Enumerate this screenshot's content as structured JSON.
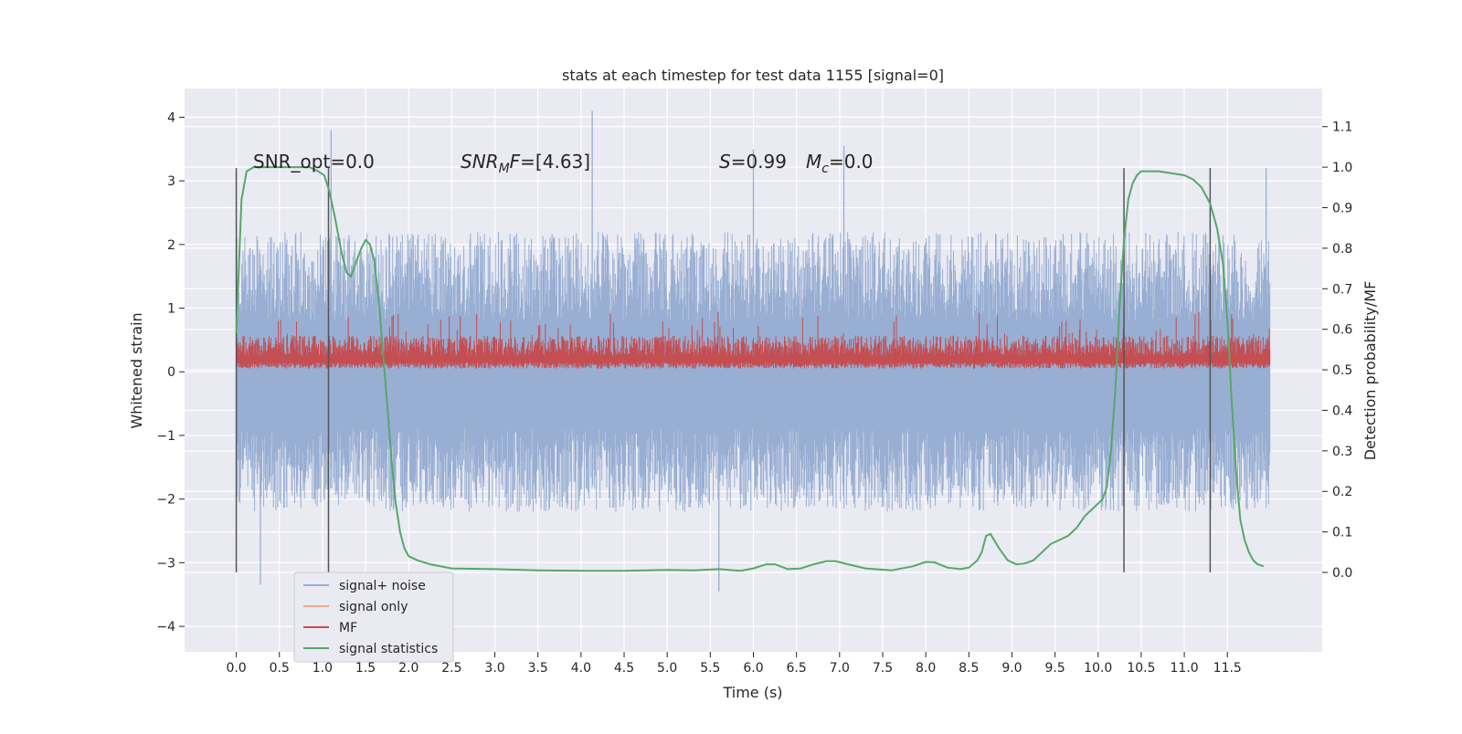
{
  "chart_data": {
    "type": "line",
    "title": "stats at each timestep for test data 1155 [signal=0]",
    "xlabel": "Time (s)",
    "ylabel": "Whitened strain",
    "y2label": "Detection probability/MF",
    "xlim": [
      -0.6,
      12.6
    ],
    "ylim": [
      -4.4,
      4.45
    ],
    "y2lim": [
      -0.196,
      1.194
    ],
    "x_ticks": [
      0.0,
      0.5,
      1.0,
      1.5,
      2.0,
      2.5,
      3.0,
      3.5,
      4.0,
      4.5,
      5.0,
      5.5,
      6.0,
      6.5,
      7.0,
      7.5,
      8.0,
      8.5,
      9.0,
      9.5,
      10.0,
      10.5,
      11.0,
      11.5
    ],
    "x_tick_labels": [
      "0.0",
      "0.5",
      "1.0",
      "1.5",
      "2.0",
      "2.5",
      "3.0",
      "3.5",
      "4.0",
      "4.5",
      "5.0",
      "5.5",
      "6.0",
      "6.5",
      "7.0",
      "7.5",
      "8.0",
      "8.5",
      "9.0",
      "9.5",
      "10.0",
      "10.5",
      "11.0",
      "11.5"
    ],
    "y_ticks": [
      4,
      3,
      2,
      1,
      0,
      -1,
      -2,
      -3,
      -4
    ],
    "y_tick_labels": [
      "4",
      "3",
      "2",
      "1",
      "0",
      "−1",
      "−2",
      "−3",
      "−4"
    ],
    "y2_ticks": [
      1.1,
      1.0,
      0.9,
      0.8,
      0.7,
      0.6,
      0.5,
      0.4,
      0.3,
      0.2,
      0.1,
      0.0
    ],
    "y2_tick_labels": [
      "1.1",
      "1.0",
      "0.9",
      "0.8",
      "0.7",
      "0.6",
      "0.5",
      "0.4",
      "0.3",
      "0.2",
      "0.1",
      "0.0"
    ],
    "grid": true,
    "legend_position": "bottom-left",
    "legend": [
      {
        "label": "signal+ noise",
        "color": "#98aed3"
      },
      {
        "label": "signal only",
        "color": "#e8a98e"
      },
      {
        "label": "MF",
        "color": "#c44e52"
      },
      {
        "label": "signal statistics",
        "color": "#55a868"
      }
    ],
    "annotations": {
      "snr_opt": "SNR_opt=0.0",
      "snr_mf_name": "SNR",
      "snr_mf_sub": "M",
      "snr_mf_name2": "F",
      "snr_mf_value": "=[4.63]",
      "s_name": "S",
      "s_value": "=0.99",
      "mc_name": "M",
      "mc_sub": "c",
      "mc_value": "=0.0"
    },
    "vertical_markers": [
      0.0,
      1.07,
      10.3,
      11.3
    ],
    "marker_range": [
      -3.15,
      3.2
    ],
    "noise_series": {
      "name": "signal+ noise",
      "x_range": [
        0.0,
        12.0
      ],
      "samples": 1700,
      "envelope_y": [
        -3.35,
        4.1
      ],
      "peaks": [
        {
          "x": 0.28,
          "y": -3.35
        },
        {
          "x": 1.1,
          "y": 3.8
        },
        {
          "x": 4.13,
          "y": 4.1
        },
        {
          "x": 5.6,
          "y": -3.45
        },
        {
          "x": 6.0,
          "y": 3.5
        },
        {
          "x": 7.05,
          "y": 3.55
        },
        {
          "x": 11.95,
          "y": 3.2
        }
      ]
    },
    "mf_series": {
      "name": "MF",
      "x_range": [
        0.0,
        12.0
      ],
      "samples": 1700,
      "baseline_y": 0.0,
      "typical_top_y": 0.55,
      "max_y": 0.95
    },
    "stat_series": {
      "name": "signal statistics",
      "axis": "right",
      "x": [
        0.0,
        0.06,
        0.12,
        0.2,
        0.35,
        0.5,
        0.7,
        0.85,
        0.95,
        1.02,
        1.08,
        1.15,
        1.22,
        1.28,
        1.33,
        1.38,
        1.45,
        1.5,
        1.55,
        1.6,
        1.65,
        1.7,
        1.75,
        1.8,
        1.85,
        1.9,
        1.95,
        2.0,
        2.1,
        2.25,
        2.5,
        3.0,
        3.5,
        4.0,
        4.5,
        5.0,
        5.3,
        5.6,
        5.85,
        6.0,
        6.15,
        6.25,
        6.4,
        6.55,
        6.7,
        6.85,
        6.95,
        7.1,
        7.3,
        7.6,
        7.85,
        8.0,
        8.1,
        8.25,
        8.4,
        8.5,
        8.6,
        8.65,
        8.7,
        8.75,
        8.85,
        8.95,
        9.05,
        9.15,
        9.25,
        9.35,
        9.45,
        9.55,
        9.65,
        9.75,
        9.85,
        9.95,
        10.05,
        10.1,
        10.15,
        10.2,
        10.25,
        10.3,
        10.35,
        10.4,
        10.45,
        10.5,
        10.6,
        10.7,
        10.85,
        11.0,
        11.1,
        11.2,
        11.3,
        11.38,
        11.45,
        11.5,
        11.55,
        11.6,
        11.65,
        11.7,
        11.75,
        11.8,
        11.85,
        11.92
      ],
      "values": [
        0.59,
        0.92,
        0.99,
        1.0,
        1.0,
        1.0,
        1.0,
        1.0,
        0.99,
        0.98,
        0.94,
        0.87,
        0.79,
        0.74,
        0.73,
        0.76,
        0.8,
        0.82,
        0.81,
        0.77,
        0.68,
        0.55,
        0.42,
        0.28,
        0.17,
        0.1,
        0.06,
        0.04,
        0.03,
        0.02,
        0.01,
        0.008,
        0.005,
        0.004,
        0.004,
        0.006,
        0.005,
        0.008,
        0.004,
        0.01,
        0.02,
        0.02,
        0.008,
        0.01,
        0.02,
        0.028,
        0.028,
        0.02,
        0.01,
        0.005,
        0.015,
        0.026,
        0.025,
        0.012,
        0.008,
        0.012,
        0.03,
        0.05,
        0.09,
        0.095,
        0.06,
        0.03,
        0.02,
        0.022,
        0.03,
        0.05,
        0.07,
        0.08,
        0.09,
        0.11,
        0.14,
        0.16,
        0.18,
        0.21,
        0.3,
        0.45,
        0.66,
        0.82,
        0.92,
        0.96,
        0.98,
        0.99,
        0.99,
        0.99,
        0.985,
        0.98,
        0.97,
        0.95,
        0.91,
        0.85,
        0.76,
        0.62,
        0.42,
        0.25,
        0.13,
        0.08,
        0.05,
        0.03,
        0.02,
        0.015
      ]
    }
  }
}
